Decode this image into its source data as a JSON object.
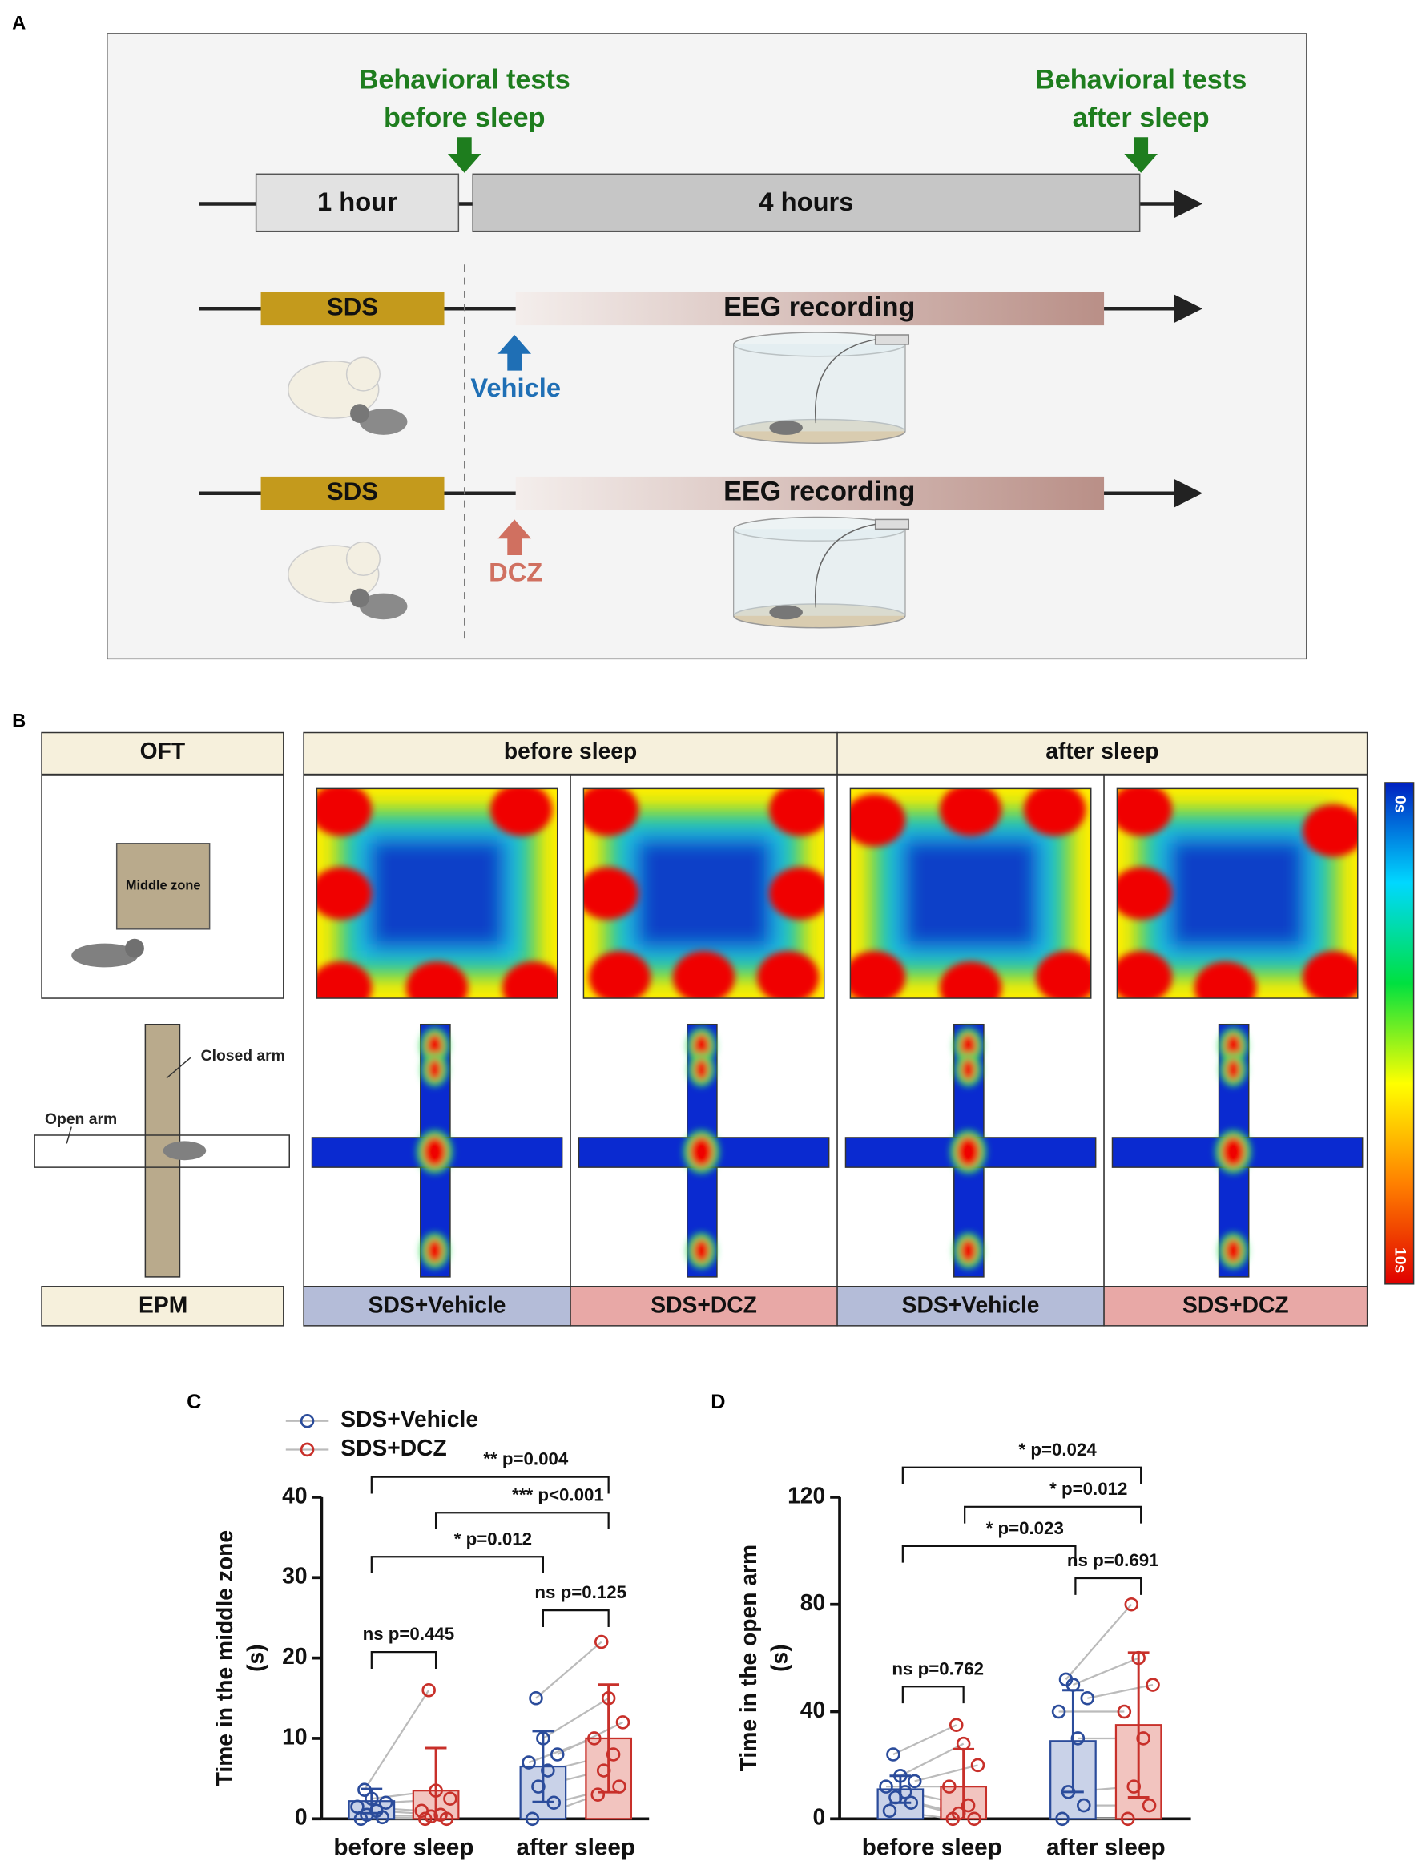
{
  "panel_a": {
    "label": "A",
    "test_before": [
      "Behavioral tests",
      "before sleep"
    ],
    "test_after": [
      "Behavioral tests",
      "after sleep"
    ],
    "period_1": "1 hour",
    "period_2": "4 hours",
    "rows": [
      {
        "stress": "SDS",
        "recording": "EEG recording",
        "drug": "Vehicle"
      },
      {
        "stress": "SDS",
        "recording": "EEG recording",
        "drug": "DCZ"
      }
    ]
  },
  "panel_b": {
    "label": "B",
    "oft": "OFT",
    "epm": "EPM",
    "middle_zone": "Middle zone",
    "closed_arm": "Closed arm",
    "open_arm": "Open arm",
    "phases": [
      "before sleep",
      "after sleep"
    ],
    "groups": [
      "SDS+Vehicle",
      "SDS+DCZ",
      "SDS+Vehicle",
      "SDS+DCZ"
    ],
    "colorbar": [
      "0s",
      "10s"
    ]
  },
  "chart_data": [
    {
      "type": "bar",
      "label": "C",
      "ylabel": [
        "Time in the middle zone",
        "(s)"
      ],
      "categories": [
        "before sleep",
        "after sleep"
      ],
      "ylim": [
        0,
        40
      ],
      "yticks": [
        0,
        10,
        20,
        30,
        40
      ],
      "legend": "top-left",
      "series": [
        {
          "name": "SDS+Vehicle",
          "color": "#2b4c9b",
          "fill": "#c9d2e8",
          "values": [
            2.2,
            6.5
          ],
          "errors": [
            1.5,
            4.4
          ],
          "points": [
            [
              0,
              0.2,
              0.5,
              1,
              1.5,
              2,
              2.5,
              3.6
            ],
            [
              0,
              2,
              4,
              6,
              7,
              8,
              10,
              15
            ]
          ]
        },
        {
          "name": "SDS+DCZ",
          "color": "#c8302a",
          "fill": "#f2c4bf",
          "values": [
            3.5,
            10
          ],
          "errors": [
            5.3,
            6.7
          ],
          "points": [
            [
              0,
              0,
              0.3,
              0.5,
              1,
              2.5,
              3.5,
              16
            ],
            [
              3,
              4,
              6,
              8,
              10,
              12,
              15,
              22
            ]
          ]
        }
      ],
      "annotations": [
        "** p=0.004",
        "*** p<0.001",
        "* p=0.012",
        "ns p=0.445",
        "ns p=0.125"
      ]
    },
    {
      "type": "bar",
      "label": "D",
      "ylabel": [
        "Time in the open arm",
        "(s)"
      ],
      "categories": [
        "before sleep",
        "after sleep"
      ],
      "ylim": [
        0,
        120
      ],
      "yticks": [
        0,
        40,
        80,
        120
      ],
      "series": [
        {
          "color": "#2b4c9b",
          "fill": "#c9d2e8",
          "values": [
            11,
            29
          ],
          "errors": [
            5,
            19
          ],
          "points": [
            [
              3,
              6,
              8,
              10,
              12,
              14,
              16,
              24
            ],
            [
              0,
              5,
              10,
              30,
              40,
              45,
              50,
              52
            ]
          ]
        },
        {
          "color": "#c8302a",
          "fill": "#f2c4bf",
          "values": [
            12,
            35
          ],
          "errors": [
            14,
            27
          ],
          "points": [
            [
              0,
              0,
              2,
              5,
              12,
              20,
              28,
              35
            ],
            [
              0,
              5,
              12,
              30,
              40,
              50,
              60,
              80
            ]
          ]
        }
      ],
      "annotations": [
        "* p=0.024",
        "* p=0.012",
        "* p=0.023",
        "ns p=0.762",
        "ns p=0.691"
      ]
    }
  ]
}
